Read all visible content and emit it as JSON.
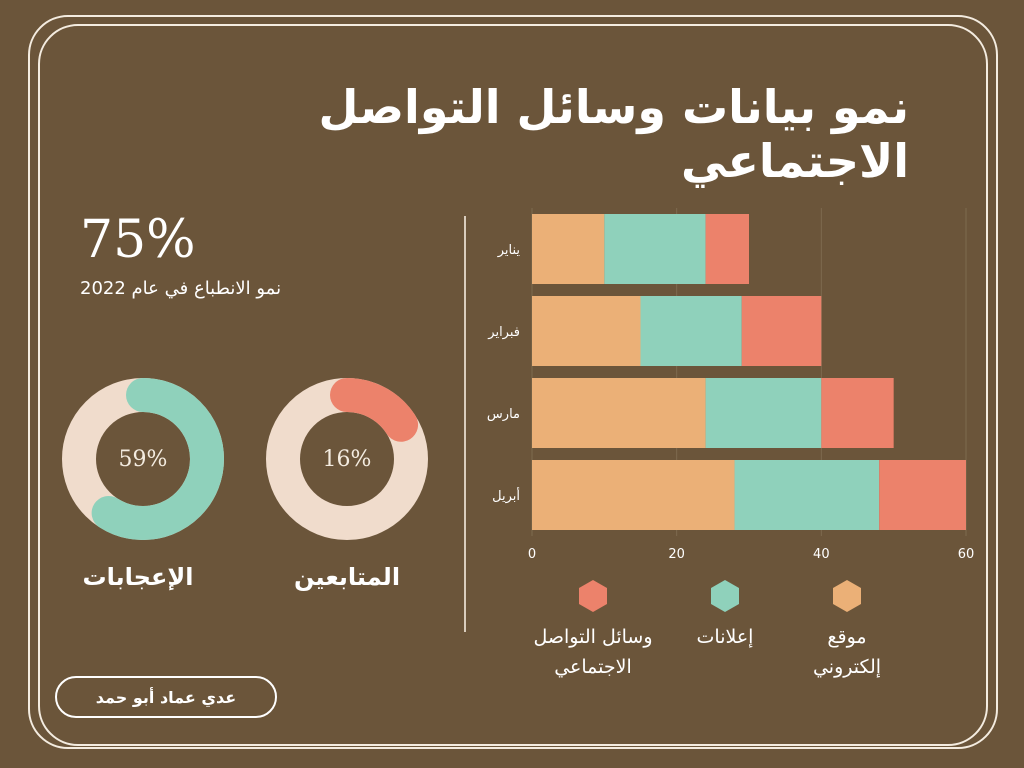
{
  "title": "نمو بيانات وسائل التواصل الاجتماعي",
  "stat": {
    "value": "75%",
    "caption": "نمو الانطباع في عام 2022"
  },
  "donuts": [
    {
      "label": "59%",
      "title": "الإعجابات",
      "percent": 59,
      "color": "#8fd1bb",
      "track": "#f0dccc"
    },
    {
      "label": "16%",
      "title": "المتابعين",
      "percent": 16,
      "color": "#ec826b",
      "track": "#f0dccc"
    }
  ],
  "author": "عدي عماد أبو حمد",
  "chart_data": {
    "type": "bar",
    "orientation": "horizontal",
    "stacked": true,
    "categories": [
      "يناير",
      "فبراير",
      "مارس",
      "أبريل"
    ],
    "series": [
      {
        "name": "موقع إلكتروني",
        "color": "#ebb077",
        "values": [
          10,
          15,
          24,
          28
        ]
      },
      {
        "name": "إعلانات",
        "color": "#8fd1bb",
        "values": [
          14,
          14,
          16,
          20
        ]
      },
      {
        "name": "وسائل التواصل الاجتماعي",
        "color": "#ec826b",
        "values": [
          6,
          11,
          10,
          12
        ]
      }
    ],
    "xlim": [
      0,
      60
    ],
    "xticks": [
      "0",
      "20",
      "40",
      "60"
    ],
    "grid": true,
    "legend": "bottom"
  },
  "legend": [
    {
      "line1": "موقع",
      "line2": "إلكتروني",
      "color": "#ebb077"
    },
    {
      "line1": "إعلانات",
      "line2": "",
      "color": "#8fd1bb"
    },
    {
      "line1": "وسائل التواصل",
      "line2": "الاجتماعي",
      "color": "#ec826b"
    }
  ]
}
